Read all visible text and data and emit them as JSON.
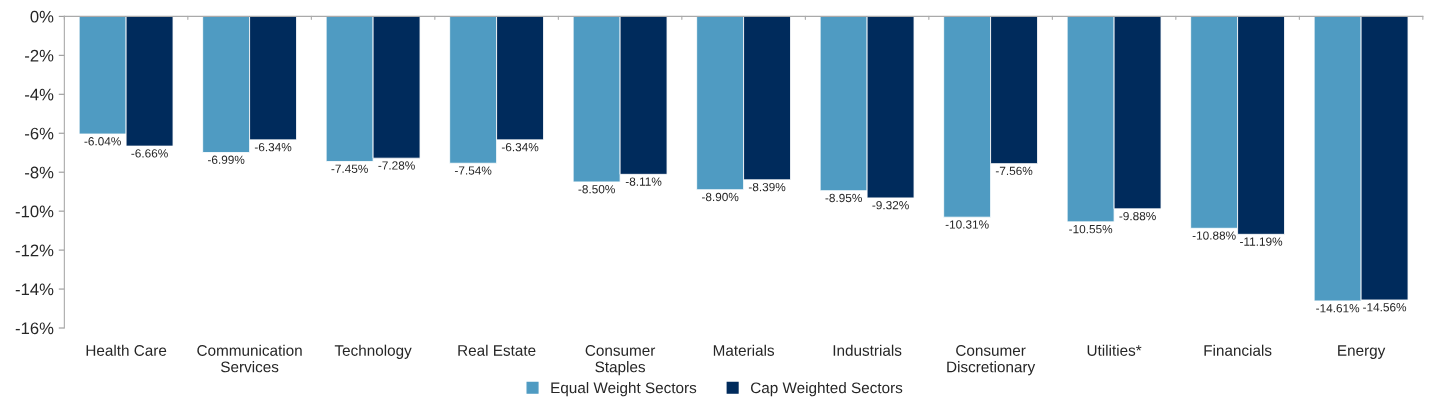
{
  "chart_data": {
    "type": "bar",
    "categories": [
      "Health Care",
      "Communication\nServices",
      "Technology",
      "Real Estate",
      "Consumer\nStaples",
      "Materials",
      "Industrials",
      "Consumer\nDiscretionary",
      "Utilities*",
      "Financials",
      "Energy"
    ],
    "series": [
      {
        "name": "Equal Weight Sectors",
        "color": "#4f9bc2",
        "values": [
          -6.04,
          -6.99,
          -7.45,
          -7.54,
          -8.5,
          -8.9,
          -8.95,
          -10.31,
          -10.55,
          -10.88,
          -14.61
        ],
        "value_labels": [
          "-6.04%",
          "-6.99%",
          "-7.45%",
          "-7.54%",
          "-8.50%",
          "-8.90%",
          "-8.95%",
          "-10.31%",
          "-10.55%",
          "-10.88%",
          "-14.61%"
        ]
      },
      {
        "name": "Cap Weighted Sectors",
        "color": "#002b5c",
        "values": [
          -6.66,
          -6.34,
          -7.28,
          -6.34,
          -8.11,
          -8.39,
          -9.32,
          -7.56,
          -9.88,
          -11.19,
          -14.56
        ],
        "value_labels": [
          "-6.66%",
          "-6.34%",
          "-7.28%",
          "-6.34%",
          "-8.11%",
          "-8.39%",
          "-9.32%",
          "-7.56%",
          "-9.88%",
          "-11.19%",
          "-14.56%"
        ]
      }
    ],
    "ylim": [
      -16,
      0
    ],
    "yticks": [
      {
        "value": 0,
        "label": "0%"
      },
      {
        "value": -2,
        "label": "-2%"
      },
      {
        "value": -4,
        "label": "-4%"
      },
      {
        "value": -6,
        "label": "-6%"
      },
      {
        "value": -8,
        "label": "-8%"
      },
      {
        "value": -10,
        "label": "-10%"
      },
      {
        "value": -12,
        "label": "-12%"
      },
      {
        "value": -14,
        "label": "-14%"
      },
      {
        "value": -16,
        "label": "-16%"
      }
    ],
    "grid": false,
    "legend": "bottom"
  }
}
